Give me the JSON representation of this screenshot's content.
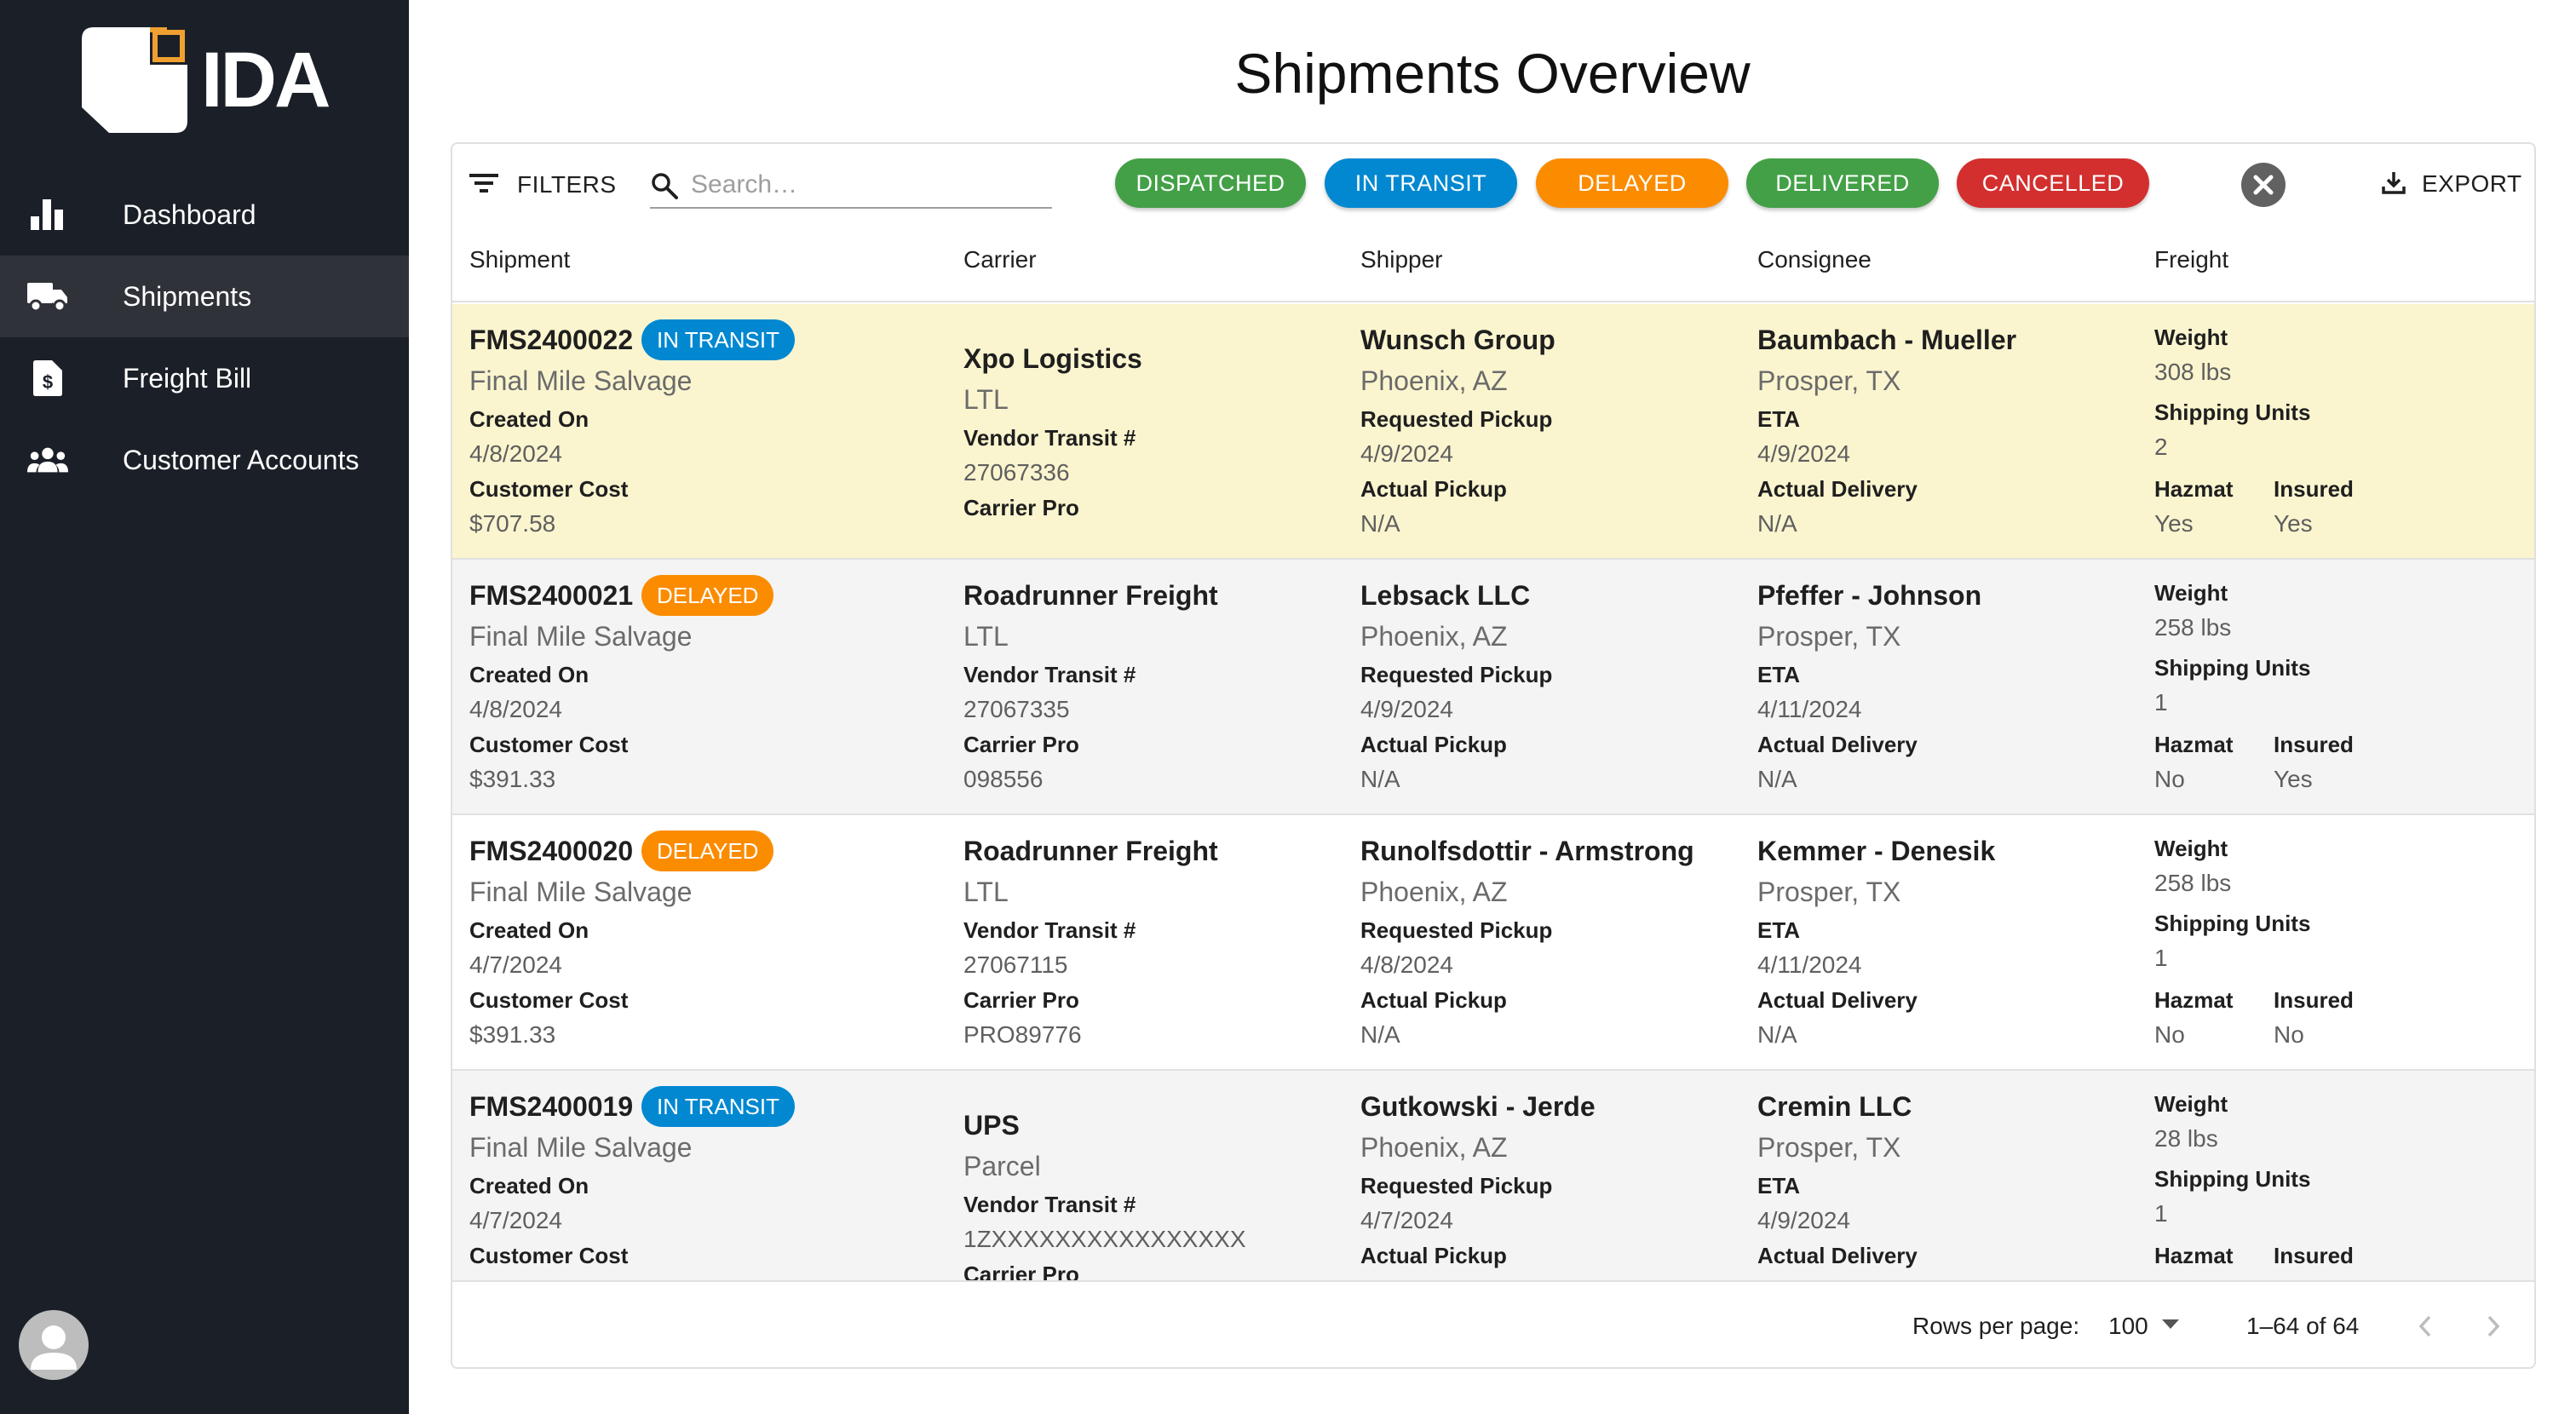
{
  "app": {
    "logo_text": "IDA",
    "brand_accent": "#f0a030",
    "sidebar_bg": "#1b2028"
  },
  "sidebar": {
    "items": [
      {
        "label": "Dashboard",
        "icon": "bar-chart-icon"
      },
      {
        "label": "Shipments",
        "icon": "truck-icon",
        "active": true
      },
      {
        "label": "Freight Bill",
        "icon": "invoice-dollar-icon"
      },
      {
        "label": "Customer Accounts",
        "icon": "people-group-icon"
      }
    ],
    "avatar_icon": "user-avatar-icon"
  },
  "page": {
    "title": "Shipments Overview"
  },
  "toolbar": {
    "filters_label": "FILTERS",
    "search_placeholder": "Search…",
    "status_chips": [
      {
        "label": "DISPATCHED",
        "color": "#43a047"
      },
      {
        "label": "IN TRANSIT",
        "color": "#0288d1"
      },
      {
        "label": "DELAYED",
        "color": "#fb8c00"
      },
      {
        "label": "DELIVERED",
        "color": "#43a047"
      },
      {
        "label": "CANCELLED",
        "color": "#d32f2f"
      }
    ],
    "export_label": "EXPORT"
  },
  "columns": [
    "Shipment",
    "Carrier",
    "Shipper",
    "Consignee",
    "Freight"
  ],
  "labels": {
    "created_on": "Created On",
    "customer_cost": "Customer Cost",
    "vendor_transit": "Vendor Transit #",
    "carrier_pro": "Carrier Pro",
    "requested_pickup": "Requested Pickup",
    "actual_pickup": "Actual Pickup",
    "eta": "ETA",
    "actual_delivery": "Actual Delivery",
    "weight": "Weight",
    "shipping_units": "Shipping Units",
    "hazmat": "Hazmat",
    "insured": "Insured"
  },
  "rows": [
    {
      "id": "FMS2400022",
      "status": "IN TRANSIT",
      "status_color": "#0288d1",
      "customer": "Final Mile Salvage",
      "created_on": "4/8/2024",
      "customer_cost": "$707.58",
      "carrier": "Xpo Logistics",
      "mode": "LTL",
      "vendor_transit": "27067336",
      "carrier_pro": "",
      "shipper": "Wunsch Group",
      "shipper_loc": "Phoenix, AZ",
      "requested_pickup": "4/9/2024",
      "actual_pickup": "N/A",
      "consignee": "Baumbach - Mueller",
      "consignee_loc": "Prosper, TX",
      "eta": "4/9/2024",
      "actual_delivery": "N/A",
      "weight": "308 lbs",
      "units": "2",
      "hazmat": "Yes",
      "insured": "Yes"
    },
    {
      "id": "FMS2400021",
      "status": "DELAYED",
      "status_color": "#fb8c00",
      "customer": "Final Mile Salvage",
      "created_on": "4/8/2024",
      "customer_cost": "$391.33",
      "carrier": "Roadrunner Freight",
      "mode": "LTL",
      "vendor_transit": "27067335",
      "carrier_pro": "098556",
      "shipper": "Lebsack LLC",
      "shipper_loc": "Phoenix, AZ",
      "requested_pickup": "4/9/2024",
      "actual_pickup": "N/A",
      "consignee": "Pfeffer - Johnson",
      "consignee_loc": "Prosper, TX",
      "eta": "4/11/2024",
      "actual_delivery": "N/A",
      "weight": "258 lbs",
      "units": "1",
      "hazmat": "No",
      "insured": "Yes"
    },
    {
      "id": "FMS2400020",
      "status": "DELAYED",
      "status_color": "#fb8c00",
      "customer": "Final Mile Salvage",
      "created_on": "4/7/2024",
      "customer_cost": "$391.33",
      "carrier": "Roadrunner Freight",
      "mode": "LTL",
      "vendor_transit": "27067115",
      "carrier_pro": "PRO89776",
      "shipper": "Runolfsdottir - Armstrong",
      "shipper_loc": "Phoenix, AZ",
      "requested_pickup": "4/8/2024",
      "actual_pickup": "N/A",
      "consignee": "Kemmer - Denesik",
      "consignee_loc": "Prosper, TX",
      "eta": "4/11/2024",
      "actual_delivery": "N/A",
      "weight": "258 lbs",
      "units": "1",
      "hazmat": "No",
      "insured": "No"
    },
    {
      "id": "FMS2400019",
      "status": "IN TRANSIT",
      "status_color": "#0288d1",
      "customer": "Final Mile Salvage",
      "created_on": "4/7/2024",
      "customer_cost": "",
      "carrier": "UPS",
      "mode": "Parcel",
      "vendor_transit": "1ZXXXXXXXXXXXXXXXX",
      "carrier_pro": "",
      "shipper": "Gutkowski - Jerde",
      "shipper_loc": "Phoenix, AZ",
      "requested_pickup": "4/7/2024",
      "actual_pickup": "",
      "consignee": "Cremin LLC",
      "consignee_loc": "Prosper, TX",
      "eta": "4/9/2024",
      "actual_delivery": "",
      "weight": "28 lbs",
      "units": "1",
      "hazmat": "",
      "insured": ""
    }
  ],
  "footer": {
    "rows_per_page_label": "Rows per page:",
    "rows_per_page": "100",
    "range": "1–64 of 64"
  }
}
